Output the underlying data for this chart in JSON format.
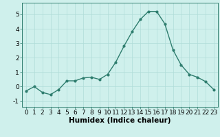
{
  "x": [
    0,
    1,
    2,
    3,
    4,
    5,
    6,
    7,
    8,
    9,
    10,
    11,
    12,
    13,
    14,
    15,
    16,
    17,
    18,
    19,
    20,
    21,
    22,
    23
  ],
  "y": [
    -0.3,
    0.0,
    -0.4,
    -0.55,
    -0.2,
    0.4,
    0.4,
    0.6,
    0.65,
    0.5,
    0.85,
    1.7,
    2.8,
    3.8,
    4.65,
    5.2,
    5.2,
    4.35,
    2.55,
    1.5,
    0.85,
    0.65,
    0.35,
    -0.2
  ],
  "line_color": "#2e7d6e",
  "marker": "o",
  "marker_size": 2.0,
  "line_width": 1.0,
  "background_color": "#cff0ec",
  "grid_color": "#b0ddd8",
  "xlabel": "Humidex (Indice chaleur)",
  "xlabel_fontsize": 7.5,
  "ylim": [
    -1.4,
    5.8
  ],
  "xlim": [
    -0.5,
    23.5
  ],
  "yticks": [
    -1,
    0,
    1,
    2,
    3,
    4,
    5
  ],
  "xtick_labels": [
    "0",
    "1",
    "2",
    "3",
    "4",
    "5",
    "6",
    "7",
    "8",
    "9",
    "10",
    "11",
    "12",
    "13",
    "14",
    "15",
    "16",
    "17",
    "18",
    "19",
    "20",
    "21",
    "22",
    "23"
  ],
  "tick_fontsize": 6.5
}
